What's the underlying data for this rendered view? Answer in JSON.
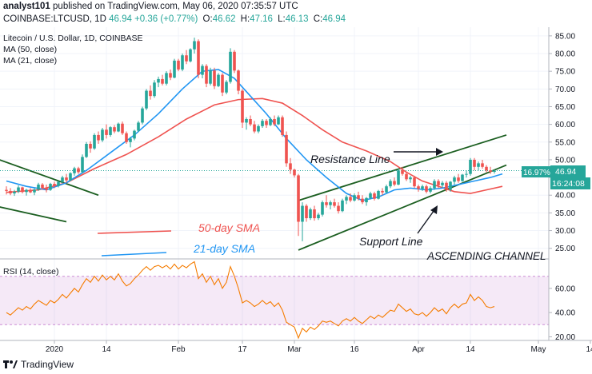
{
  "header": {
    "line1_user": "analyst101",
    "line1_text": "published on TradingView.com, May 06, 2020 07:35:57 UTC",
    "symbol": "COINBASE:LTCUSD, 1D",
    "last": "46.94",
    "change": "+0.36 (+0.77%)",
    "o_label": "O:",
    "o": "46.62",
    "h_label": "H:",
    "h": "47.16",
    "l_label": "L:",
    "l": "46.13",
    "c_label": "C:",
    "c": "46.94"
  },
  "legend": {
    "title": "Litecoin / U.S. Dollar, 1D, COINBASE",
    "ma50": "MA (50, close)",
    "ma21": "MA (21, close)"
  },
  "annotations": {
    "resistance": "Resistance Line",
    "support": "Support Line",
    "channel": "ASCENDING CHANNEL",
    "sma50": "50-day SMA",
    "sma21": "21-day SMA"
  },
  "price_labels": {
    "pct": "16.97%",
    "last": "46.94",
    "timer": "16:24:08"
  },
  "rsi_label": "RSI (14, close)",
  "footer": {
    "brand": "TradingView"
  },
  "colors": {
    "up": "#26a69a",
    "down": "#ef5350",
    "ma50": "#ef5350",
    "ma21": "#2196f3",
    "rsi": "#f57c00",
    "rsi_band": "#9c27b0",
    "trendline": "#1b5e20"
  },
  "chart_data": [
    {
      "type": "candlestick",
      "title": "Litecoin / U.S. Dollar, 1D, COINBASE",
      "x_ticks": [
        "2020",
        "14",
        "Feb",
        "17",
        "Mar",
        "16",
        "Apr",
        "14",
        "May",
        "14"
      ],
      "y_ticks": [
        25,
        30,
        35,
        40,
        45,
        50,
        55,
        60,
        65,
        70,
        75,
        80,
        85
      ],
      "ylim": [
        22,
        87
      ],
      "start_date": "2019-12-20",
      "candles": [
        [
          41.5,
          42.5,
          40.2,
          41.2
        ],
        [
          41.2,
          42.0,
          40.0,
          40.5
        ],
        [
          40.5,
          41.5,
          39.8,
          41.0
        ],
        [
          41.0,
          42.8,
          40.6,
          42.2
        ],
        [
          42.2,
          42.4,
          40.5,
          40.9
        ],
        [
          40.9,
          41.8,
          39.9,
          41.5
        ],
        [
          41.5,
          42.0,
          40.6,
          40.8
        ],
        [
          40.8,
          42.0,
          40.0,
          41.6
        ],
        [
          41.6,
          43.5,
          41.2,
          43.0
        ],
        [
          43.0,
          43.4,
          41.5,
          42.0
        ],
        [
          42.0,
          43.0,
          40.8,
          41.5
        ],
        [
          41.5,
          43.5,
          41.2,
          43.2
        ],
        [
          43.2,
          43.8,
          42.0,
          42.6
        ],
        [
          42.6,
          44.0,
          42.2,
          43.8
        ],
        [
          43.8,
          45.5,
          43.4,
          45.0
        ],
        [
          45.0,
          46.0,
          43.5,
          44.2
        ],
        [
          44.2,
          46.5,
          44.0,
          46.2
        ],
        [
          46.2,
          48.0,
          45.5,
          47.6
        ],
        [
          47.6,
          48.0,
          46.0,
          46.5
        ],
        [
          46.5,
          51.5,
          46.2,
          50.8
        ],
        [
          50.8,
          55.0,
          50.5,
          54.5
        ],
        [
          54.5,
          55.2,
          52.0,
          53.2
        ],
        [
          53.2,
          57.5,
          52.8,
          57.0
        ],
        [
          57.0,
          58.0,
          54.5,
          55.5
        ],
        [
          55.5,
          59.0,
          55.0,
          58.5
        ],
        [
          58.5,
          60.0,
          56.0,
          57.0
        ],
        [
          57.0,
          59.5,
          56.5,
          59.2
        ],
        [
          59.2,
          59.8,
          57.5,
          58.0
        ],
        [
          58.0,
          60.5,
          57.8,
          60.2
        ],
        [
          60.2,
          60.8,
          57.0,
          57.5
        ],
        [
          57.5,
          58.0,
          54.5,
          55.0
        ],
        [
          55.0,
          56.5,
          53.5,
          56.0
        ],
        [
          56.0,
          58.5,
          55.5,
          58.2
        ],
        [
          58.2,
          61.0,
          57.8,
          60.5
        ],
        [
          60.5,
          65.0,
          60.0,
          64.5
        ],
        [
          64.5,
          70.0,
          64.0,
          69.5
        ],
        [
          69.5,
          71.0,
          67.0,
          68.0
        ],
        [
          68.0,
          72.5,
          67.5,
          71.8
        ],
        [
          71.8,
          73.5,
          70.5,
          72.8
        ],
        [
          72.8,
          74.0,
          71.0,
          71.5
        ],
        [
          71.5,
          75.0,
          71.0,
          74.5
        ],
        [
          74.5,
          75.5,
          72.5,
          73.2
        ],
        [
          73.2,
          78.5,
          73.0,
          78.0
        ],
        [
          78.0,
          78.5,
          75.0,
          75.5
        ],
        [
          75.5,
          80.0,
          75.0,
          79.5
        ],
        [
          79.5,
          81.0,
          77.0,
          77.8
        ],
        [
          77.8,
          81.5,
          77.5,
          81.2
        ],
        [
          81.2,
          84.5,
          80.0,
          83.5
        ],
        [
          83.5,
          84.0,
          73.0,
          74.0
        ],
        [
          74.0,
          77.0,
          73.0,
          76.5
        ],
        [
          76.5,
          77.0,
          70.5,
          71.5
        ],
        [
          71.5,
          76.0,
          71.0,
          75.2
        ],
        [
          75.2,
          76.0,
          70.0,
          70.8
        ],
        [
          70.8,
          74.5,
          70.5,
          74.0
        ],
        [
          74.0,
          74.5,
          68.0,
          69.0
        ],
        [
          69.0,
          72.5,
          68.5,
          72.0
        ],
        [
          72.0,
          81.5,
          71.5,
          80.5
        ],
        [
          80.5,
          81.0,
          74.5,
          75.2
        ],
        [
          75.2,
          75.5,
          68.5,
          69.5
        ],
        [
          69.5,
          70.0,
          59.0,
          60.5
        ],
        [
          60.5,
          62.0,
          58.5,
          61.5
        ],
        [
          61.5,
          62.5,
          59.5,
          60.0
        ],
        [
          60.0,
          61.0,
          57.5,
          58.0
        ],
        [
          58.0,
          60.0,
          57.5,
          59.5
        ],
        [
          59.5,
          61.5,
          59.0,
          61.0
        ],
        [
          61.0,
          61.5,
          59.0,
          59.8
        ],
        [
          59.8,
          62.0,
          59.5,
          61.5
        ],
        [
          61.5,
          62.5,
          59.5,
          60.0
        ],
        [
          60.0,
          62.5,
          59.8,
          62.0
        ],
        [
          62.0,
          62.5,
          56.5,
          57.0
        ],
        [
          57.0,
          58.0,
          48.0,
          49.0
        ],
        [
          49.0,
          50.5,
          46.0,
          47.2
        ],
        [
          47.2,
          47.5,
          45.0,
          45.6
        ],
        [
          45.6,
          46.0,
          28.5,
          32.5
        ],
        [
          32.5,
          38.0,
          27.0,
          37.0
        ],
        [
          37.0,
          37.5,
          32.5,
          33.5
        ],
        [
          33.5,
          36.5,
          33.0,
          36.0
        ],
        [
          36.0,
          37.0,
          32.8,
          33.5
        ],
        [
          33.5,
          35.0,
          33.0,
          34.5
        ],
        [
          34.5,
          38.5,
          34.0,
          38.0
        ],
        [
          38.0,
          40.0,
          36.5,
          37.2
        ],
        [
          37.2,
          38.5,
          36.0,
          38.0
        ],
        [
          38.0,
          39.0,
          36.5,
          37.0
        ],
        [
          37.0,
          38.0,
          34.8,
          35.5
        ],
        [
          35.5,
          39.0,
          35.2,
          38.5
        ],
        [
          38.5,
          40.0,
          37.5,
          39.5
        ],
        [
          39.5,
          40.5,
          38.0,
          38.5
        ],
        [
          38.5,
          40.5,
          38.2,
          40.0
        ],
        [
          40.0,
          41.0,
          38.5,
          39.0
        ],
        [
          39.0,
          40.0,
          37.5,
          38.0
        ],
        [
          38.0,
          39.5,
          37.0,
          39.2
        ],
        [
          39.2,
          41.0,
          38.8,
          40.5
        ],
        [
          40.5,
          41.0,
          38.5,
          39.0
        ],
        [
          39.0,
          41.5,
          38.8,
          41.2
        ],
        [
          41.2,
          42.0,
          40.0,
          40.8
        ],
        [
          40.8,
          43.0,
          40.5,
          42.5
        ],
        [
          42.5,
          44.5,
          42.0,
          44.0
        ],
        [
          44.0,
          45.0,
          42.5,
          43.0
        ],
        [
          43.0,
          47.5,
          42.8,
          47.0
        ],
        [
          47.0,
          48.0,
          45.5,
          46.0
        ],
        [
          46.0,
          46.5,
          44.0,
          44.5
        ],
        [
          44.5,
          45.5,
          43.5,
          45.0
        ],
        [
          45.0,
          45.5,
          42.0,
          42.5
        ],
        [
          42.5,
          43.0,
          41.0,
          41.8
        ],
        [
          41.8,
          43.0,
          41.2,
          42.5
        ],
        [
          42.5,
          43.0,
          40.5,
          41.0
        ],
        [
          41.0,
          42.5,
          40.5,
          42.0
        ],
        [
          42.0,
          44.5,
          41.5,
          44.0
        ],
        [
          44.0,
          44.5,
          42.0,
          42.8
        ],
        [
          42.8,
          44.0,
          42.2,
          43.5
        ],
        [
          43.5,
          44.0,
          41.0,
          41.5
        ],
        [
          41.5,
          44.0,
          41.0,
          43.8
        ],
        [
          43.8,
          45.5,
          43.0,
          45.0
        ],
        [
          45.0,
          46.0,
          43.5,
          44.0
        ],
        [
          44.0,
          46.0,
          43.8,
          45.8
        ],
        [
          45.8,
          47.0,
          45.0,
          46.0
        ],
        [
          46.0,
          50.5,
          45.5,
          50.0
        ],
        [
          50.0,
          50.5,
          47.0,
          48.0
        ],
        [
          48.0,
          49.5,
          47.0,
          49.0
        ],
        [
          49.0,
          50.0,
          47.5,
          48.0
        ],
        [
          48.0,
          48.5,
          46.5,
          47.0
        ],
        [
          47.0,
          48.0,
          46.0,
          46.6
        ],
        [
          46.6,
          47.2,
          46.1,
          46.94
        ]
      ],
      "sma50": [
        [
          0,
          40.8
        ],
        [
          8,
          41.5
        ],
        [
          15,
          43.5
        ],
        [
          22,
          47.5
        ],
        [
          30,
          51.5
        ],
        [
          38,
          56.5
        ],
        [
          45,
          61.5
        ],
        [
          52,
          65.5
        ],
        [
          58,
          67.0
        ],
        [
          64,
          67.3
        ],
        [
          69,
          66.0
        ],
        [
          74,
          62.5
        ],
        [
          79,
          58.5
        ],
        [
          84,
          55.0
        ],
        [
          90,
          52.5
        ],
        [
          96,
          49.5
        ],
        [
          100,
          46.5
        ],
        [
          104,
          44.0
        ],
        [
          108,
          42.5
        ],
        [
          112,
          41.0
        ],
        [
          116,
          40.5
        ],
        [
          120,
          41.5
        ],
        [
          124,
          42.5
        ]
      ],
      "sma21": [
        [
          0,
          44.0
        ],
        [
          5,
          42.5
        ],
        [
          10,
          41.5
        ],
        [
          15,
          43.5
        ],
        [
          20,
          47.0
        ],
        [
          26,
          52.0
        ],
        [
          32,
          57.0
        ],
        [
          38,
          63.0
        ],
        [
          44,
          70.0
        ],
        [
          49,
          75.0
        ],
        [
          53,
          75.5
        ],
        [
          57,
          73.0
        ],
        [
          61,
          68.0
        ],
        [
          65,
          63.0
        ],
        [
          70,
          56.0
        ],
        [
          75,
          50.0
        ],
        [
          80,
          45.0
        ],
        [
          85,
          40.5
        ],
        [
          89,
          38.5
        ],
        [
          93,
          39.5
        ],
        [
          97,
          41.5
        ],
        [
          101,
          42.0
        ],
        [
          105,
          41.5
        ],
        [
          109,
          42.0
        ],
        [
          113,
          43.0
        ],
        [
          117,
          44.0
        ],
        [
          121,
          45.0
        ],
        [
          124,
          46.0
        ]
      ],
      "trendlines": [
        {
          "label": "Resistance Line",
          "from": [
            73,
            38.5
          ],
          "to": [
            125,
            57.0
          ]
        },
        {
          "label": "Support Line",
          "from": [
            73,
            24.5
          ],
          "to": [
            125,
            48.5
          ]
        },
        {
          "label": "",
          "from": [
            -3,
            50.5
          ],
          "to": [
            23,
            40.0
          ]
        },
        {
          "label": "",
          "from": [
            -3,
            37.0
          ],
          "to": [
            15,
            32.5
          ]
        }
      ]
    },
    {
      "type": "line",
      "title": "RSI (14, close)",
      "y_ticks": [
        20,
        40,
        60
      ],
      "ylim": [
        17,
        83
      ],
      "band": [
        30,
        70
      ],
      "values": [
        40,
        38,
        41,
        44,
        42,
        45,
        43,
        47,
        50,
        48,
        46,
        50,
        48,
        51,
        55,
        52,
        56,
        60,
        57,
        63,
        68,
        65,
        70,
        66,
        71,
        67,
        70,
        67,
        72,
        66,
        62,
        64,
        68,
        71,
        75,
        78,
        75,
        78,
        79,
        77,
        79,
        76,
        80,
        76,
        79,
        77,
        80,
        82,
        68,
        72,
        65,
        70,
        63,
        68,
        60,
        65,
        78,
        70,
        60,
        48,
        50,
        48,
        45,
        47,
        50,
        47,
        49,
        45,
        48,
        42,
        32,
        30,
        28,
        19,
        27,
        24,
        28,
        26,
        29,
        33,
        32,
        33,
        31,
        29,
        33,
        35,
        33,
        36,
        33,
        31,
        34,
        37,
        35,
        38,
        36,
        39,
        42,
        41,
        47,
        44,
        41,
        43,
        39,
        38,
        40,
        37,
        40,
        44,
        41,
        43,
        39,
        44,
        47,
        44,
        47,
        48,
        55,
        50,
        53,
        50,
        45,
        44,
        45
      ]
    }
  ]
}
